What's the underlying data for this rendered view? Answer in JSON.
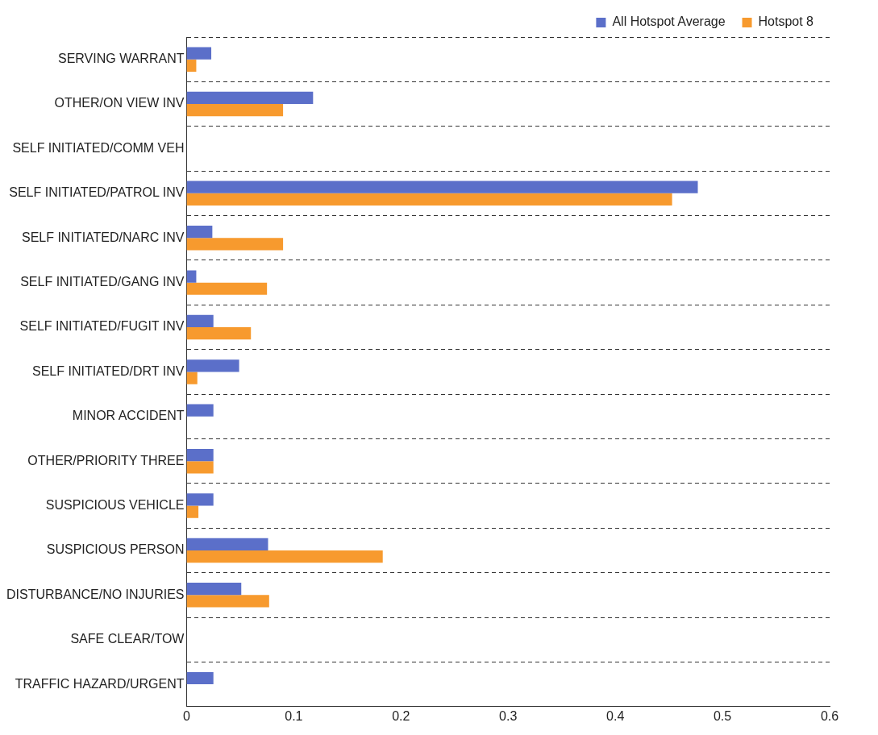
{
  "chart_data": {
    "type": "bar",
    "orientation": "horizontal",
    "categories": [
      "SERVING WARRANT",
      "OTHER/ON VIEW INV",
      "SELF INITIATED/COMM VEH",
      "SELF INITIATED/PATROL INV",
      "SELF INITIATED/NARC INV",
      "SELF INITIATED/GANG INV",
      "SELF INITIATED/FUGIT INV",
      "SELF INITIATED/DRT INV",
      "MINOR ACCIDENT",
      "OTHER/PRIORITY THREE",
      "SUSPICIOUS VEHICLE",
      "SUSPICIOUS PERSON",
      "DISTURBANCE/NO INJURIES",
      "SAFE CLEAR/TOW",
      "TRAFFIC HAZARD/URGENT"
    ],
    "series": [
      {
        "name": "All Hotspot Average",
        "color": "#5b6fc9",
        "values": [
          0.023,
          0.118,
          0,
          0.477,
          0.024,
          0.009,
          0.025,
          0.049,
          0.025,
          0.025,
          0.025,
          0.076,
          0.051,
          0,
          0.025
        ]
      },
      {
        "name": "Hotspot 8",
        "color": "#f79a2e",
        "values": [
          0.009,
          0.09,
          0,
          0.453,
          0.09,
          0.075,
          0.06,
          0.01,
          0,
          0.025,
          0.011,
          0.183,
          0.077,
          0,
          0
        ]
      }
    ],
    "xlim": [
      0,
      0.6
    ],
    "xticks": [
      0,
      0.1,
      0.2,
      0.3,
      0.4,
      0.5,
      0.6
    ],
    "grid": "y",
    "line_style": "dashed",
    "legend": "top right"
  }
}
